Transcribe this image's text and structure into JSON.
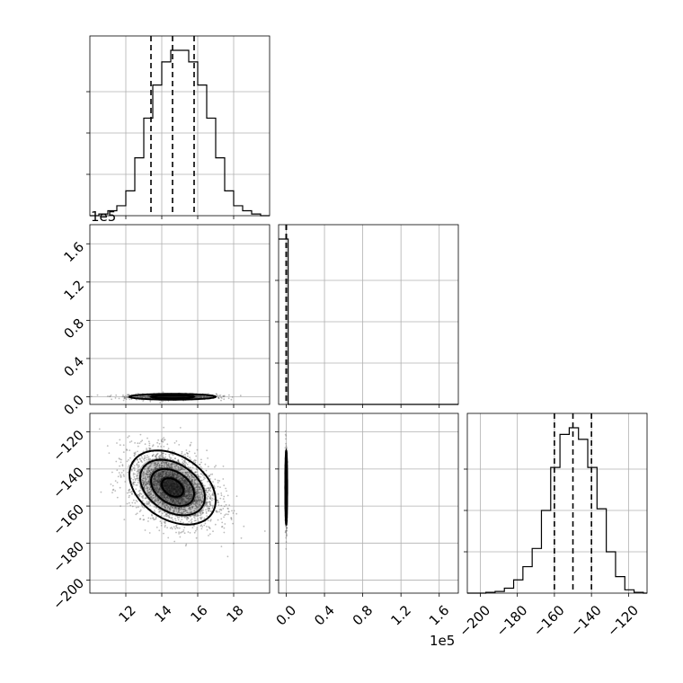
{
  "chart_data": {
    "type": "corner",
    "grid": true,
    "parameters": [
      {
        "range": [
          10,
          20
        ],
        "ticks": [
          12,
          14,
          16,
          18
        ],
        "tick_labels": [
          "12",
          "14",
          "16",
          "18"
        ]
      },
      {
        "range": [
          -0.08,
          1.8
        ],
        "ticks": [
          0.0,
          0.4,
          0.8,
          1.2,
          1.6
        ],
        "tick_labels": [
          "0.0",
          "0.4",
          "0.8",
          "1.2",
          "1.6"
        ],
        "offset_text": "1e5"
      },
      {
        "range": [
          -207,
          -110
        ],
        "ticks": [
          -200,
          -180,
          -160,
          -140,
          -120
        ],
        "tick_labels": [
          "−200",
          "−180",
          "−160",
          "−140",
          "−120"
        ]
      }
    ],
    "panels": [
      {
        "kind": "histogram",
        "row": 0,
        "col": 0,
        "bin_edges": [
          10.0,
          10.5,
          11.0,
          11.5,
          12.0,
          12.5,
          13.0,
          13.5,
          14.0,
          14.5,
          15.0,
          15.5,
          16.0,
          16.5,
          17.0,
          17.5,
          18.0,
          18.5,
          19.0,
          19.5,
          20.0
        ],
        "counts": [
          0,
          0.01,
          0.03,
          0.06,
          0.15,
          0.35,
          0.59,
          0.79,
          0.93,
          1.0,
          1.0,
          0.93,
          0.79,
          0.59,
          0.35,
          0.15,
          0.06,
          0.03,
          0.01,
          0
        ],
        "quantiles": [
          13.4,
          14.6,
          15.8
        ]
      },
      {
        "kind": "histogram",
        "row": 1,
        "col": 1,
        "bin_edges": [
          -0.08,
          0.02,
          0.12,
          0.22,
          0.32,
          0.42,
          0.52,
          0.62,
          0.72,
          0.82,
          0.92,
          1.02,
          1.12,
          1.22,
          1.32,
          1.42,
          1.52,
          1.62,
          1.72,
          1.8
        ],
        "counts": [
          1.0,
          0,
          0,
          0,
          0,
          0,
          0,
          0,
          0,
          0,
          0,
          0,
          0,
          0,
          0,
          0,
          0,
          0,
          0
        ],
        "quantiles": [
          0.0,
          0.0,
          0.0
        ]
      },
      {
        "kind": "histogram",
        "row": 2,
        "col": 2,
        "bin_edges": [
          -207,
          -202,
          -197,
          -192,
          -187,
          -182,
          -177,
          -172,
          -167,
          -162,
          -157,
          -152,
          -147,
          -142,
          -137,
          -132,
          -127,
          -122,
          -117,
          -112,
          -110
        ],
        "counts": [
          0,
          0,
          0.005,
          0.01,
          0.03,
          0.08,
          0.16,
          0.27,
          0.5,
          0.76,
          0.96,
          1.0,
          0.93,
          0.76,
          0.51,
          0.25,
          0.1,
          0.02,
          0.005,
          0
        ],
        "quantiles": [
          -160,
          -150,
          -140
        ]
      },
      {
        "kind": "scatter",
        "row": 1,
        "col": 0,
        "x_param": 0,
        "y_param": 1,
        "center": [
          14.6,
          0.0
        ],
        "sigma": [
          1.2,
          0.015
        ],
        "rho": 0,
        "contour_sigmas": [
          1,
          2
        ],
        "points": 1100
      },
      {
        "kind": "scatter",
        "row": 2,
        "col": 0,
        "x_param": 0,
        "y_param": 2,
        "center": [
          14.6,
          -150
        ],
        "sigma": [
          1.2,
          10
        ],
        "rho": -0.35,
        "contour_sigmas": [
          0.5,
          1,
          1.5,
          2
        ],
        "points": 2600
      },
      {
        "kind": "scatter",
        "row": 2,
        "col": 1,
        "x_param": 1,
        "y_param": 2,
        "center": [
          0.0,
          -150
        ],
        "sigma": [
          0.005,
          10
        ],
        "rho": 0,
        "contour_sigmas": [
          0.5,
          1,
          1.5,
          2
        ],
        "points": 700
      }
    ]
  }
}
